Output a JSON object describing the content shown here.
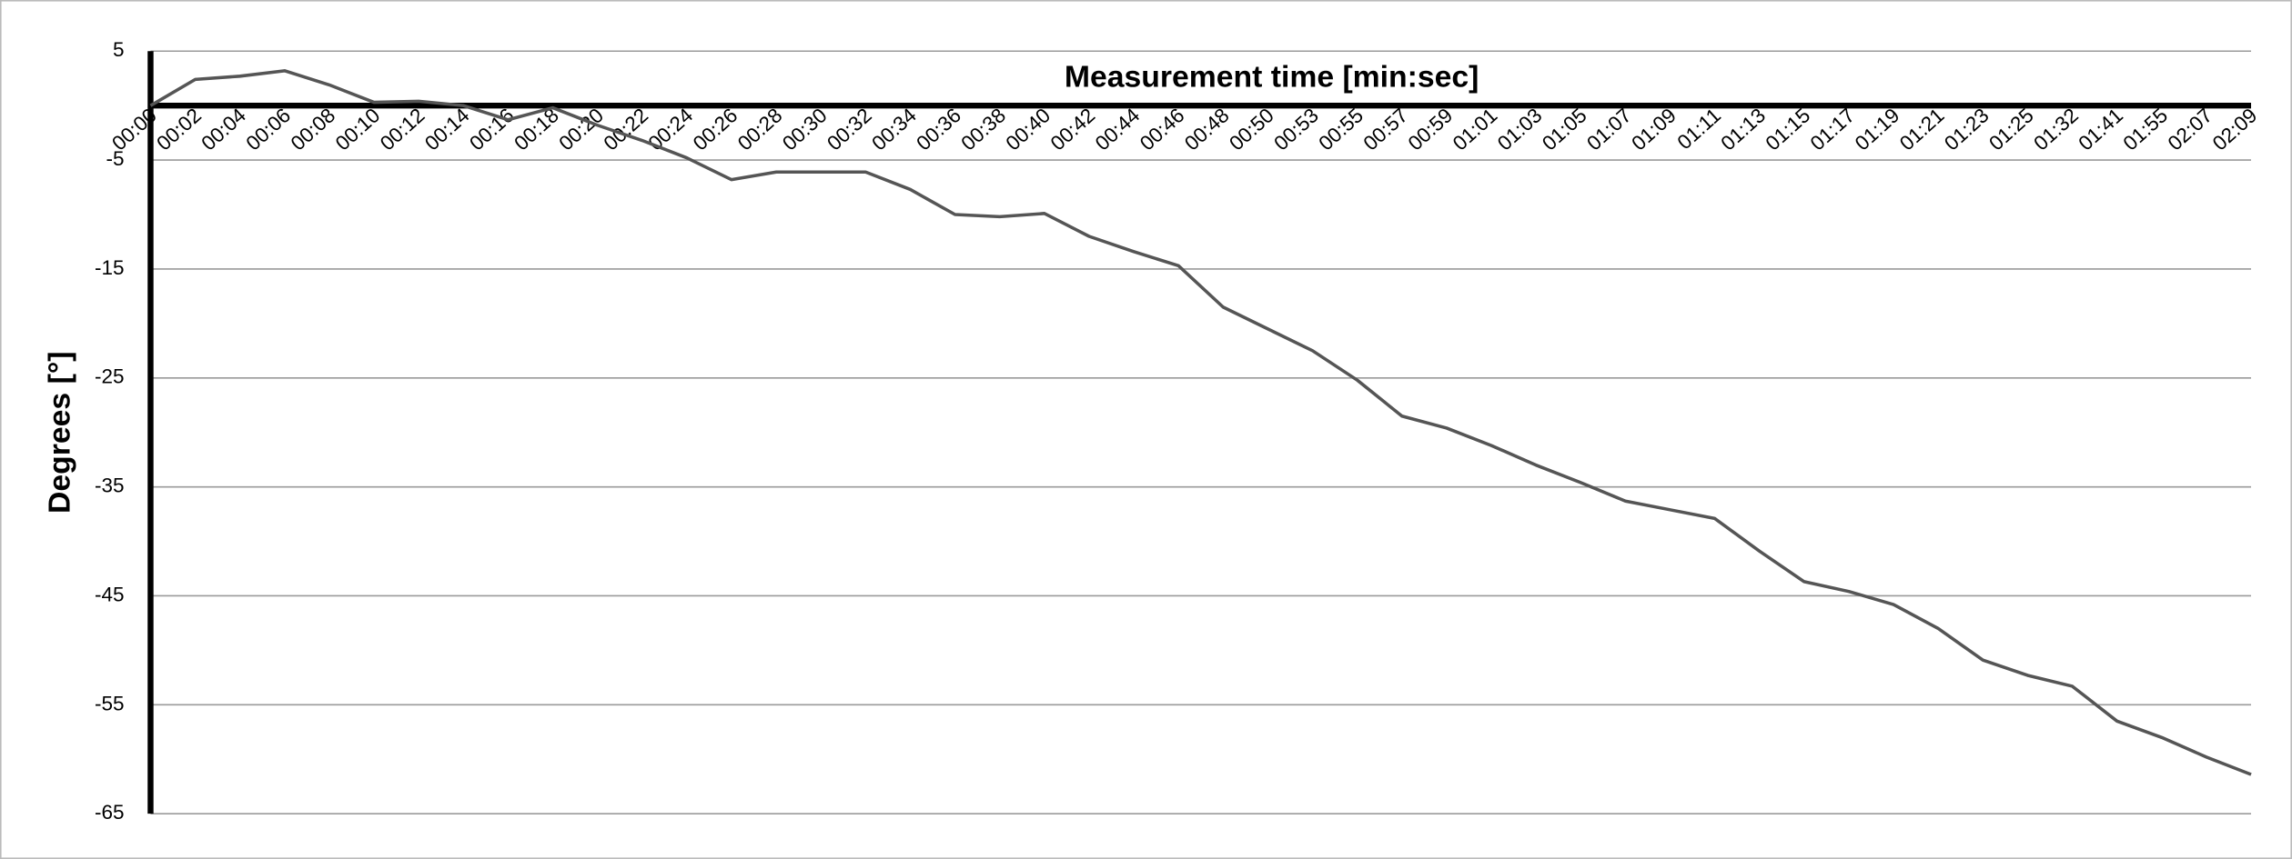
{
  "chart_data": {
    "type": "line",
    "x_label": "Measurement time [min:sec]",
    "y_label": "Degrees  [°]",
    "categories": [
      "00:00",
      "00:02",
      "00:04",
      "00:06",
      "00:08",
      "00:10",
      "00:12",
      "00:14",
      "00:16",
      "00:18",
      "00:20",
      "00:22",
      "00:24",
      "00:26",
      "00:28",
      "00:30",
      "00:32",
      "00:34",
      "00:36",
      "00:38",
      "00:40",
      "00:42",
      "00:44",
      "00:46",
      "00:48",
      "00:50",
      "00:53",
      "00:55",
      "00:57",
      "00:59",
      "01:01",
      "01:03",
      "01:05",
      "01:07",
      "01:09",
      "01:11",
      "01:13",
      "01:15",
      "01:17",
      "01:19",
      "01:21",
      "01:23",
      "01:25",
      "01:32",
      "01:41",
      "01:55",
      "02:07",
      "02:09"
    ],
    "values": [
      0,
      2.4,
      2.7,
      3.2,
      1.9,
      0.3,
      0.4,
      0,
      -1.3,
      -0.2,
      -1.8,
      -3.2,
      -4.8,
      -6.8,
      -6.1,
      -6.1,
      -6.1,
      -7.7,
      -10.0,
      -10.2,
      -9.9,
      -12.0,
      -13.4,
      -14.7,
      -18.5,
      -20.5,
      -22.5,
      -25.2,
      -28.5,
      -29.6,
      -31.2,
      -33.0,
      -34.6,
      -36.3,
      -37.1,
      -37.9,
      -40.9,
      -43.7,
      -44.6,
      -45.8,
      -48.0,
      -50.9,
      -52.3,
      -53.3,
      -56.5,
      -58.0,
      -59.8,
      -61.4
    ],
    "color": "#555555",
    "ylim": [
      -65,
      5
    ],
    "yticks": [
      5,
      -5,
      -15,
      -25,
      -35,
      -45,
      -55,
      -65
    ],
    "grid": true
  }
}
